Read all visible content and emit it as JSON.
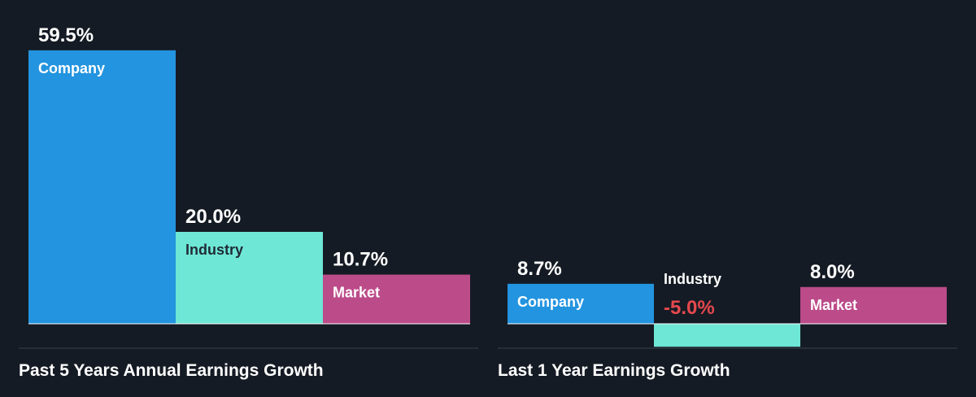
{
  "chart_data": [
    {
      "type": "bar",
      "title": "Past 5 Years Annual Earnings Growth",
      "unit": "%",
      "categories": [
        "Company",
        "Industry",
        "Market"
      ],
      "values": [
        59.5,
        20.0,
        10.7
      ],
      "value_labels": [
        "59.5%",
        "20.0%",
        "10.7%"
      ],
      "colors": [
        "#2394df",
        "#6fe7d6",
        "#bc4b8a"
      ]
    },
    {
      "type": "bar",
      "title": "Last 1 Year Earnings Growth",
      "unit": "%",
      "categories": [
        "Company",
        "Industry",
        "Market"
      ],
      "values": [
        8.7,
        -5.0,
        8.0
      ],
      "value_labels": [
        "8.7%",
        "-5.0%",
        "8.0%"
      ],
      "colors": [
        "#2394df",
        "#6fe7d6",
        "#bc4b8a"
      ]
    }
  ],
  "colors": {
    "background": "#151b24",
    "text": "#ffffff",
    "negative_value": "#e5484d",
    "label_on_light_bar": "#1f2b36",
    "axis": "#ffffff",
    "divider": "#3a414b"
  }
}
